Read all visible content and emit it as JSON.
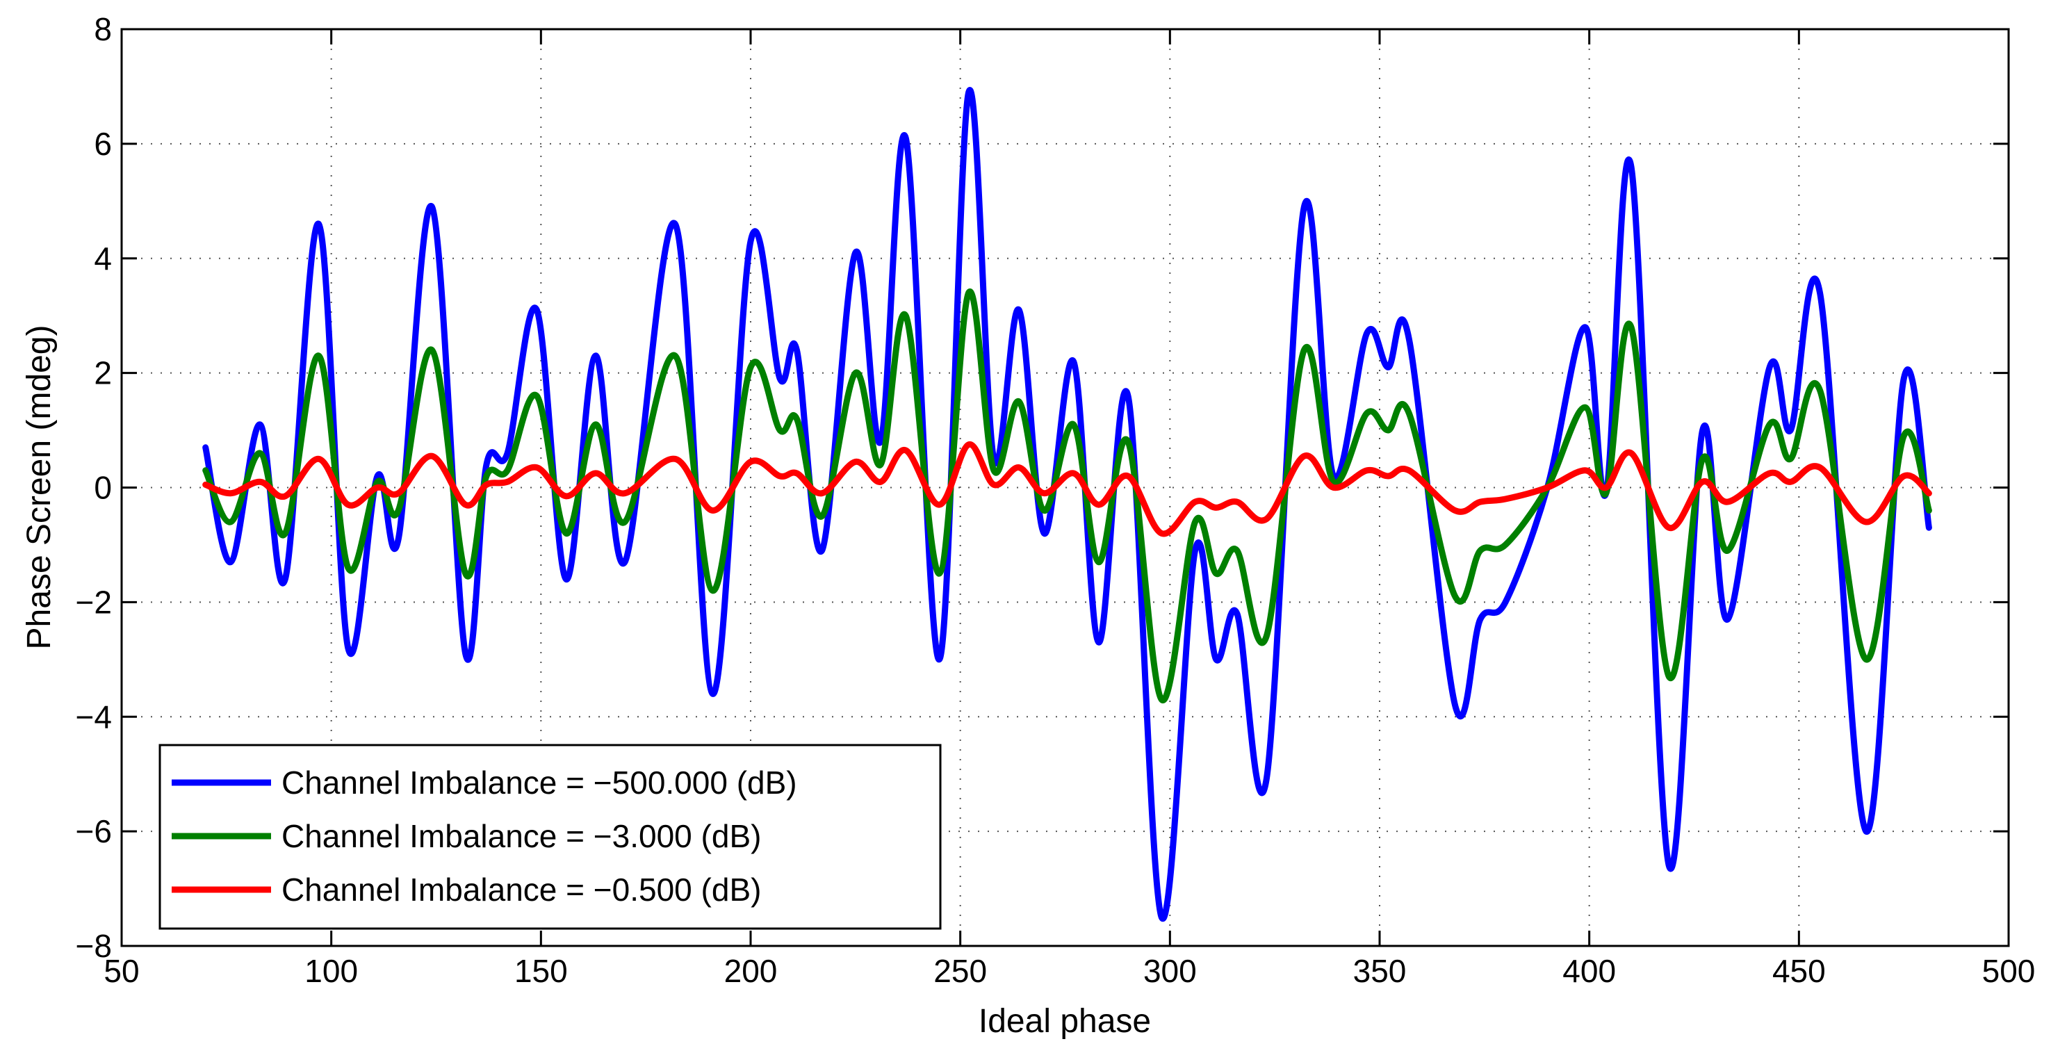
{
  "chart_data": {
    "type": "line",
    "title": "",
    "xlabel": "Ideal phase",
    "ylabel": "Phase Screen (mdeg)",
    "xlim": [
      50,
      500
    ],
    "ylim": [
      -8,
      8
    ],
    "grid": true,
    "legend_position": "bottom-left",
    "x_ticks": [
      50,
      100,
      150,
      200,
      250,
      300,
      350,
      400,
      450,
      500
    ],
    "x_tick_labels": [
      "50",
      "100",
      "150",
      "200",
      "250",
      "300",
      "350",
      "400",
      "450",
      "500"
    ],
    "y_ticks": [
      -8,
      -6,
      -4,
      -2,
      0,
      2,
      4,
      6,
      8
    ],
    "y_tick_labels": [
      "−8",
      "−6",
      "−4",
      "−2",
      "0",
      "2",
      "4",
      "6",
      "8"
    ],
    "x": [
      70,
      76,
      83,
      89,
      97,
      104,
      111,
      116,
      124,
      132,
      137,
      142,
      149,
      156,
      163,
      170,
      182,
      191,
      200,
      207,
      211,
      217,
      225,
      231,
      237,
      245,
      252,
      258,
      264,
      270,
      277,
      283,
      290,
      298,
      306,
      311,
      316,
      323,
      332,
      339,
      347,
      352,
      357,
      368,
      374,
      380,
      390,
      399,
      404,
      410,
      419,
      427,
      433,
      443,
      448,
      455,
      466,
      475,
      481
    ],
    "series": [
      {
        "name": "Channel Imbalance = −500.000 (dB)",
        "color": "#0000ff",
        "values": [
          0.7,
          -1.3,
          1.1,
          -1.6,
          4.6,
          -2.8,
          0.2,
          -0.9,
          4.9,
          -2.9,
          0.4,
          0.6,
          3.1,
          -1.6,
          2.3,
          -1.3,
          4.6,
          -3.6,
          4.3,
          1.9,
          2.4,
          -1.1,
          4.1,
          0.8,
          6.1,
          -3.0,
          6.9,
          0.5,
          3.1,
          -0.8,
          2.2,
          -2.7,
          1.6,
          -7.5,
          -1.1,
          -3.0,
          -2.2,
          -5.1,
          4.9,
          0.2,
          2.7,
          2.1,
          2.6,
          -3.8,
          -2.3,
          -2.0,
          0.0,
          2.8,
          -0.1,
          5.6,
          -6.6,
          1.0,
          -2.3,
          2.1,
          1.0,
          3.4,
          -6.0,
          1.9,
          -0.7
        ]
      },
      {
        "name": "Channel Imbalance = −3.000 (dB)",
        "color": "#008000",
        "values": [
          0.3,
          -0.6,
          0.6,
          -0.8,
          2.3,
          -1.4,
          0.1,
          -0.4,
          2.4,
          -1.5,
          0.2,
          0.3,
          1.6,
          -0.8,
          1.1,
          -0.6,
          2.3,
          -1.8,
          2.1,
          1.0,
          1.2,
          -0.5,
          2.0,
          0.4,
          3.0,
          -1.5,
          3.4,
          0.3,
          1.5,
          -0.4,
          1.1,
          -1.3,
          0.8,
          -3.7,
          -0.6,
          -1.5,
          -1.1,
          -2.6,
          2.4,
          0.1,
          1.3,
          1.0,
          1.3,
          -1.9,
          -1.1,
          -1.0,
          0.0,
          1.4,
          -0.1,
          2.8,
          -3.3,
          0.5,
          -1.1,
          1.1,
          0.5,
          1.7,
          -3.0,
          0.9,
          -0.4
        ]
      },
      {
        "name": "Channel Imbalance = −0.500 (dB)",
        "color": "#ff0000",
        "values": [
          0.05,
          -0.1,
          0.1,
          -0.15,
          0.5,
          -0.3,
          0.0,
          -0.1,
          0.55,
          -0.3,
          0.05,
          0.1,
          0.35,
          -0.15,
          0.25,
          -0.1,
          0.5,
          -0.4,
          0.45,
          0.2,
          0.25,
          -0.1,
          0.45,
          0.1,
          0.65,
          -0.3,
          0.75,
          0.05,
          0.35,
          -0.1,
          0.25,
          -0.3,
          0.2,
          -0.8,
          -0.25,
          -0.35,
          -0.25,
          -0.55,
          0.55,
          0.0,
          0.3,
          0.2,
          0.3,
          -0.4,
          -0.25,
          -0.2,
          0.0,
          0.3,
          0.0,
          0.6,
          -0.7,
          0.1,
          -0.25,
          0.25,
          0.1,
          0.35,
          -0.6,
          0.2,
          -0.1
        ]
      }
    ]
  }
}
